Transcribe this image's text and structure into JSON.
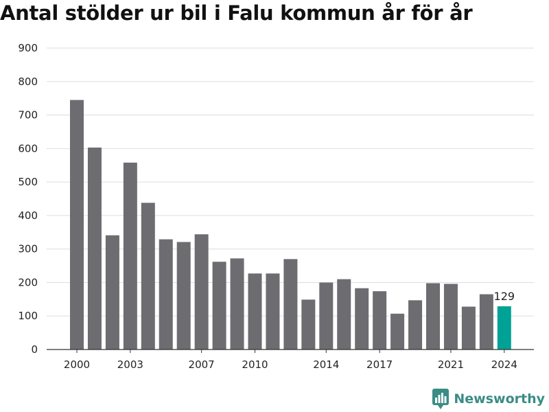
{
  "title": "Antal stölder ur bil i Falu kommun år för år",
  "brand": {
    "name": "Newsworthy",
    "logo_icon": "newsworthy-logo-icon",
    "color": "#3a8c85"
  },
  "colors": {
    "bar": "#6d6c71",
    "highlight": "#00a296",
    "grid": "#dddddd",
    "axis": "#333333"
  },
  "chart_data": {
    "type": "bar",
    "title": "Antal stölder ur bil i Falu kommun år för år",
    "xlabel": "",
    "ylabel": "",
    "ylim": [
      0,
      900
    ],
    "yticks": [
      0,
      100,
      200,
      300,
      400,
      500,
      600,
      700,
      800,
      900
    ],
    "xtick_labels": [
      "2000",
      "2003",
      "2007",
      "2010",
      "2014",
      "2017",
      "2021",
      "2024"
    ],
    "grid": true,
    "legend": "none",
    "categories": [
      2000,
      2001,
      2002,
      2003,
      2004,
      2005,
      2006,
      2007,
      2008,
      2009,
      2010,
      2011,
      2012,
      2013,
      2014,
      2015,
      2016,
      2017,
      2018,
      2019,
      2020,
      2021,
      2022,
      2023,
      2024
    ],
    "values": [
      745,
      603,
      341,
      558,
      438,
      329,
      321,
      344,
      262,
      272,
      227,
      227,
      270,
      149,
      200,
      210,
      183,
      174,
      107,
      147,
      198,
      196,
      128,
      165,
      129
    ],
    "highlight": {
      "category": 2024,
      "label": "129"
    }
  }
}
